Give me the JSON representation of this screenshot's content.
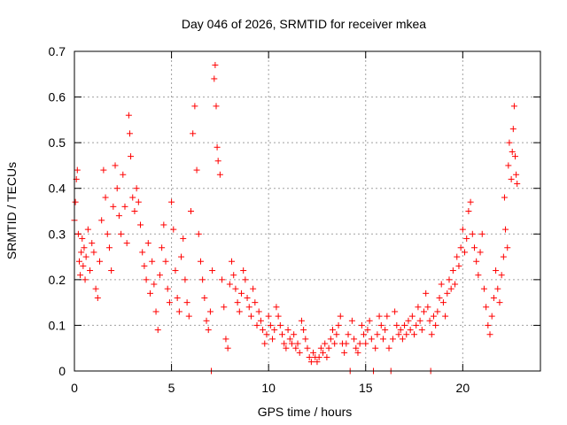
{
  "chart_data": {
    "type": "scatter",
    "title": "Day 046 of 2026, SRMTID for receiver mkea",
    "xlabel": "GPS time / hours",
    "ylabel": "SRMTID / TECUs",
    "xlim": [
      0,
      24
    ],
    "ylim": [
      0,
      0.7
    ],
    "xticks": [
      0,
      5,
      10,
      15,
      20
    ],
    "yticks": [
      0,
      0.1,
      0.2,
      0.3,
      0.4,
      0.5,
      0.6,
      0.7
    ],
    "grid": true,
    "marker_color": "#ff0000",
    "series": [
      {
        "name": "SRMTID",
        "points": [
          [
            0.0,
            0.33
          ],
          [
            0.05,
            0.37
          ],
          [
            0.1,
            0.42
          ],
          [
            0.15,
            0.44
          ],
          [
            0.2,
            0.3
          ],
          [
            0.25,
            0.24
          ],
          [
            0.3,
            0.21
          ],
          [
            0.35,
            0.26
          ],
          [
            0.4,
            0.29
          ],
          [
            0.45,
            0.23
          ],
          [
            0.5,
            0.27
          ],
          [
            0.55,
            0.2
          ],
          [
            0.6,
            0.25
          ],
          [
            0.7,
            0.31
          ],
          [
            0.8,
            0.22
          ],
          [
            0.9,
            0.28
          ],
          [
            1.0,
            0.26
          ],
          [
            1.1,
            0.18
          ],
          [
            1.2,
            0.16
          ],
          [
            1.3,
            0.24
          ],
          [
            1.4,
            0.33
          ],
          [
            1.5,
            0.44
          ],
          [
            1.6,
            0.38
          ],
          [
            1.7,
            0.3
          ],
          [
            1.8,
            0.27
          ],
          [
            1.9,
            0.22
          ],
          [
            2.0,
            0.36
          ],
          [
            2.1,
            0.45
          ],
          [
            2.2,
            0.4
          ],
          [
            2.3,
            0.34
          ],
          [
            2.4,
            0.3
          ],
          [
            2.5,
            0.43
          ],
          [
            2.6,
            0.36
          ],
          [
            2.7,
            0.28
          ],
          [
            2.8,
            0.56
          ],
          [
            2.85,
            0.52
          ],
          [
            2.9,
            0.47
          ],
          [
            3.0,
            0.38
          ],
          [
            3.1,
            0.35
          ],
          [
            3.2,
            0.4
          ],
          [
            3.3,
            0.37
          ],
          [
            3.4,
            0.32
          ],
          [
            3.5,
            0.26
          ],
          [
            3.6,
            0.23
          ],
          [
            3.7,
            0.2
          ],
          [
            3.8,
            0.28
          ],
          [
            3.9,
            0.17
          ],
          [
            4.0,
            0.24
          ],
          [
            4.1,
            0.19
          ],
          [
            4.2,
            0.13
          ],
          [
            4.3,
            0.09
          ],
          [
            4.4,
            0.21
          ],
          [
            4.5,
            0.27
          ],
          [
            4.6,
            0.32
          ],
          [
            4.7,
            0.24
          ],
          [
            4.8,
            0.18
          ],
          [
            4.9,
            0.15
          ],
          [
            5.0,
            0.37
          ],
          [
            5.1,
            0.31
          ],
          [
            5.2,
            0.22
          ],
          [
            5.3,
            0.16
          ],
          [
            5.4,
            0.13
          ],
          [
            5.5,
            0.25
          ],
          [
            5.6,
            0.29
          ],
          [
            5.7,
            0.2
          ],
          [
            5.8,
            0.15
          ],
          [
            5.9,
            0.12
          ],
          [
            6.0,
            0.35
          ],
          [
            6.1,
            0.52
          ],
          [
            6.2,
            0.58
          ],
          [
            6.3,
            0.44
          ],
          [
            6.4,
            0.3
          ],
          [
            6.5,
            0.24
          ],
          [
            6.6,
            0.2
          ],
          [
            6.7,
            0.16
          ],
          [
            6.8,
            0.11
          ],
          [
            6.9,
            0.09
          ],
          [
            7.0,
            0.13
          ],
          [
            7.05,
            0.0
          ],
          [
            7.1,
            0.22
          ],
          [
            7.2,
            0.64
          ],
          [
            7.25,
            0.67
          ],
          [
            7.3,
            0.58
          ],
          [
            7.35,
            0.49
          ],
          [
            7.4,
            0.46
          ],
          [
            7.5,
            0.43
          ],
          [
            7.6,
            0.2
          ],
          [
            7.7,
            0.14
          ],
          [
            7.8,
            0.07
          ],
          [
            7.9,
            0.05
          ],
          [
            8.0,
            0.19
          ],
          [
            8.1,
            0.24
          ],
          [
            8.2,
            0.21
          ],
          [
            8.3,
            0.18
          ],
          [
            8.4,
            0.15
          ],
          [
            8.5,
            0.13
          ],
          [
            8.6,
            0.17
          ],
          [
            8.7,
            0.22
          ],
          [
            8.8,
            0.2
          ],
          [
            8.9,
            0.16
          ],
          [
            9.0,
            0.14
          ],
          [
            9.1,
            0.12
          ],
          [
            9.2,
            0.18
          ],
          [
            9.3,
            0.15
          ],
          [
            9.4,
            0.1
          ],
          [
            9.5,
            0.13
          ],
          [
            9.6,
            0.11
          ],
          [
            9.7,
            0.09
          ],
          [
            9.8,
            0.06
          ],
          [
            9.9,
            0.08
          ],
          [
            10.0,
            0.12
          ],
          [
            10.1,
            0.1
          ],
          [
            10.2,
            0.07
          ],
          [
            10.3,
            0.09
          ],
          [
            10.4,
            0.14
          ],
          [
            10.5,
            0.12
          ],
          [
            10.6,
            0.1
          ],
          [
            10.7,
            0.08
          ],
          [
            10.8,
            0.06
          ],
          [
            10.9,
            0.05
          ],
          [
            11.0,
            0.09
          ],
          [
            11.1,
            0.07
          ],
          [
            11.2,
            0.06
          ],
          [
            11.3,
            0.08
          ],
          [
            11.4,
            0.05
          ],
          [
            11.5,
            0.06
          ],
          [
            11.6,
            0.04
          ],
          [
            11.7,
            0.11
          ],
          [
            11.8,
            0.09
          ],
          [
            11.9,
            0.07
          ],
          [
            12.0,
            0.05
          ],
          [
            12.1,
            0.03
          ],
          [
            12.2,
            0.02
          ],
          [
            12.3,
            0.04
          ],
          [
            12.4,
            0.03
          ],
          [
            12.5,
            0.02
          ],
          [
            12.6,
            0.03
          ],
          [
            12.7,
            0.05
          ],
          [
            12.8,
            0.04
          ],
          [
            12.9,
            0.06
          ],
          [
            13.0,
            0.03
          ],
          [
            13.1,
            0.05
          ],
          [
            13.2,
            0.07
          ],
          [
            13.3,
            0.09
          ],
          [
            13.4,
            0.06
          ],
          [
            13.5,
            0.08
          ],
          [
            13.6,
            0.1
          ],
          [
            13.7,
            0.12
          ],
          [
            13.8,
            0.06
          ],
          [
            13.9,
            0.04
          ],
          [
            14.0,
            0.06
          ],
          [
            14.1,
            0.08
          ],
          [
            14.2,
            0.0
          ],
          [
            14.3,
            0.11
          ],
          [
            14.4,
            0.07
          ],
          [
            14.5,
            0.05
          ],
          [
            14.6,
            0.04
          ],
          [
            14.7,
            0.06
          ],
          [
            14.8,
            0.1
          ],
          [
            14.9,
            0.08
          ],
          [
            15.0,
            0.06
          ],
          [
            15.1,
            0.09
          ],
          [
            15.2,
            0.11
          ],
          [
            15.3,
            0.07
          ],
          [
            15.4,
            0.0
          ],
          [
            15.5,
            0.05
          ],
          [
            15.6,
            0.08
          ],
          [
            15.7,
            0.12
          ],
          [
            15.8,
            0.1
          ],
          [
            15.9,
            0.07
          ],
          [
            16.0,
            0.09
          ],
          [
            16.1,
            0.12
          ],
          [
            16.2,
            0.05
          ],
          [
            16.3,
            0.0
          ],
          [
            16.4,
            0.07
          ],
          [
            16.5,
            0.13
          ],
          [
            16.6,
            0.1
          ],
          [
            16.7,
            0.08
          ],
          [
            16.8,
            0.09
          ],
          [
            16.9,
            0.07
          ],
          [
            17.0,
            0.1
          ],
          [
            17.1,
            0.08
          ],
          [
            17.2,
            0.11
          ],
          [
            17.3,
            0.09
          ],
          [
            17.4,
            0.12
          ],
          [
            17.5,
            0.08
          ],
          [
            17.6,
            0.1
          ],
          [
            17.7,
            0.14
          ],
          [
            17.8,
            0.11
          ],
          [
            17.9,
            0.09
          ],
          [
            18.0,
            0.13
          ],
          [
            18.1,
            0.17
          ],
          [
            18.2,
            0.14
          ],
          [
            18.3,
            0.11
          ],
          [
            18.35,
            0.0
          ],
          [
            18.4,
            0.08
          ],
          [
            18.5,
            0.12
          ],
          [
            18.6,
            0.1
          ],
          [
            18.7,
            0.13
          ],
          [
            18.8,
            0.16
          ],
          [
            18.9,
            0.19
          ],
          [
            19.0,
            0.15
          ],
          [
            19.1,
            0.12
          ],
          [
            19.2,
            0.17
          ],
          [
            19.3,
            0.2
          ],
          [
            19.4,
            0.18
          ],
          [
            19.5,
            0.22
          ],
          [
            19.6,
            0.19
          ],
          [
            19.7,
            0.25
          ],
          [
            19.8,
            0.23
          ],
          [
            19.9,
            0.27
          ],
          [
            20.0,
            0.31
          ],
          [
            20.1,
            0.26
          ],
          [
            20.2,
            0.29
          ],
          [
            20.3,
            0.35
          ],
          [
            20.4,
            0.37
          ],
          [
            20.5,
            0.3
          ],
          [
            20.6,
            0.27
          ],
          [
            20.7,
            0.24
          ],
          [
            20.8,
            0.21
          ],
          [
            20.9,
            0.26
          ],
          [
            21.0,
            0.3
          ],
          [
            21.1,
            0.18
          ],
          [
            21.2,
            0.14
          ],
          [
            21.3,
            0.1
          ],
          [
            21.4,
            0.08
          ],
          [
            21.5,
            0.12
          ],
          [
            21.6,
            0.16
          ],
          [
            21.7,
            0.22
          ],
          [
            21.8,
            0.18
          ],
          [
            21.9,
            0.15
          ],
          [
            22.0,
            0.21
          ],
          [
            22.1,
            0.25
          ],
          [
            22.15,
            0.38
          ],
          [
            22.2,
            0.31
          ],
          [
            22.3,
            0.27
          ],
          [
            22.35,
            0.45
          ],
          [
            22.4,
            0.5
          ],
          [
            22.5,
            0.42
          ],
          [
            22.55,
            0.48
          ],
          [
            22.6,
            0.53
          ],
          [
            22.65,
            0.58
          ],
          [
            22.7,
            0.47
          ],
          [
            22.75,
            0.43
          ],
          [
            22.8,
            0.41
          ]
        ]
      }
    ]
  }
}
